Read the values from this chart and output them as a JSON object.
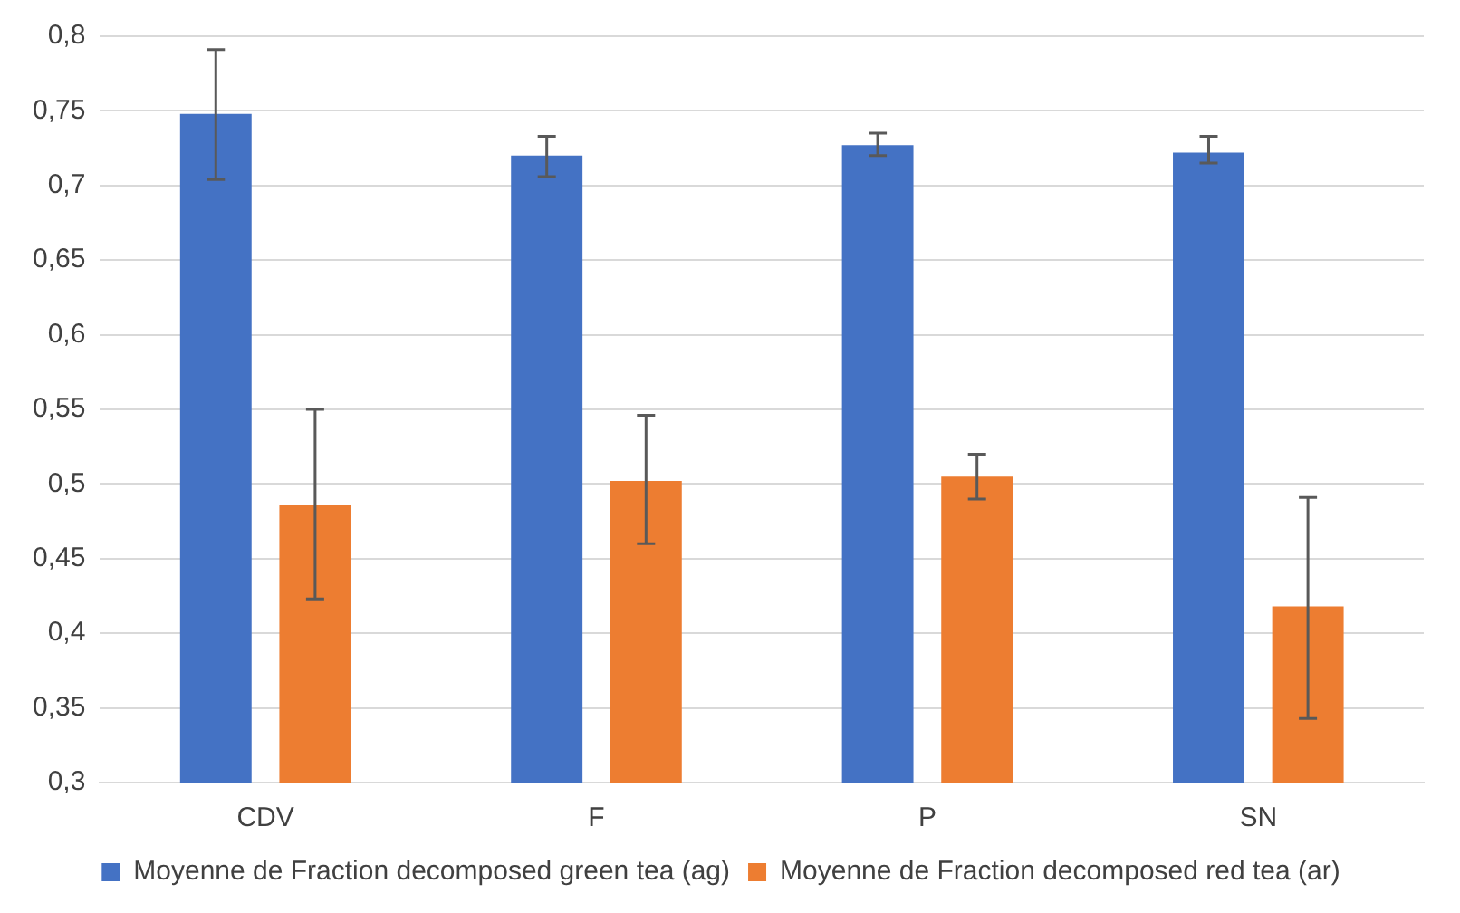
{
  "chart_data": {
    "type": "bar",
    "categories": [
      "CDV",
      "F",
      "P",
      "SN"
    ],
    "series": [
      {
        "name": "Moyenne de Fraction decomposed green tea (ag)",
        "color": "#4472c4",
        "values": [
          0.748,
          0.72,
          0.727,
          0.722
        ],
        "errors": [
          [
            0.704,
            0.791
          ],
          [
            0.706,
            0.733
          ],
          [
            0.72,
            0.735
          ],
          [
            0.715,
            0.733
          ]
        ]
      },
      {
        "name": "Moyenne de Fraction decomposed red tea (ar)",
        "color": "#ed7d31",
        "values": [
          0.486,
          0.502,
          0.505,
          0.418
        ],
        "errors": [
          [
            0.423,
            0.55
          ],
          [
            0.46,
            0.546
          ],
          [
            0.49,
            0.52
          ],
          [
            0.343,
            0.491
          ]
        ]
      }
    ],
    "ylim": [
      0.3,
      0.8
    ],
    "yticks": [
      {
        "value": 0.3,
        "label": "0,3"
      },
      {
        "value": 0.35,
        "label": "0,35"
      },
      {
        "value": 0.4,
        "label": "0,4"
      },
      {
        "value": 0.45,
        "label": "0,45"
      },
      {
        "value": 0.5,
        "label": "0,5"
      },
      {
        "value": 0.55,
        "label": "0,55"
      },
      {
        "value": 0.6,
        "label": "0,6"
      },
      {
        "value": 0.65,
        "label": "0,65"
      },
      {
        "value": 0.7,
        "label": "0,7"
      },
      {
        "value": 0.75,
        "label": "0,75"
      },
      {
        "value": 0.8,
        "label": "0,8"
      }
    ],
    "grid": "y",
    "legend": "bottom"
  }
}
